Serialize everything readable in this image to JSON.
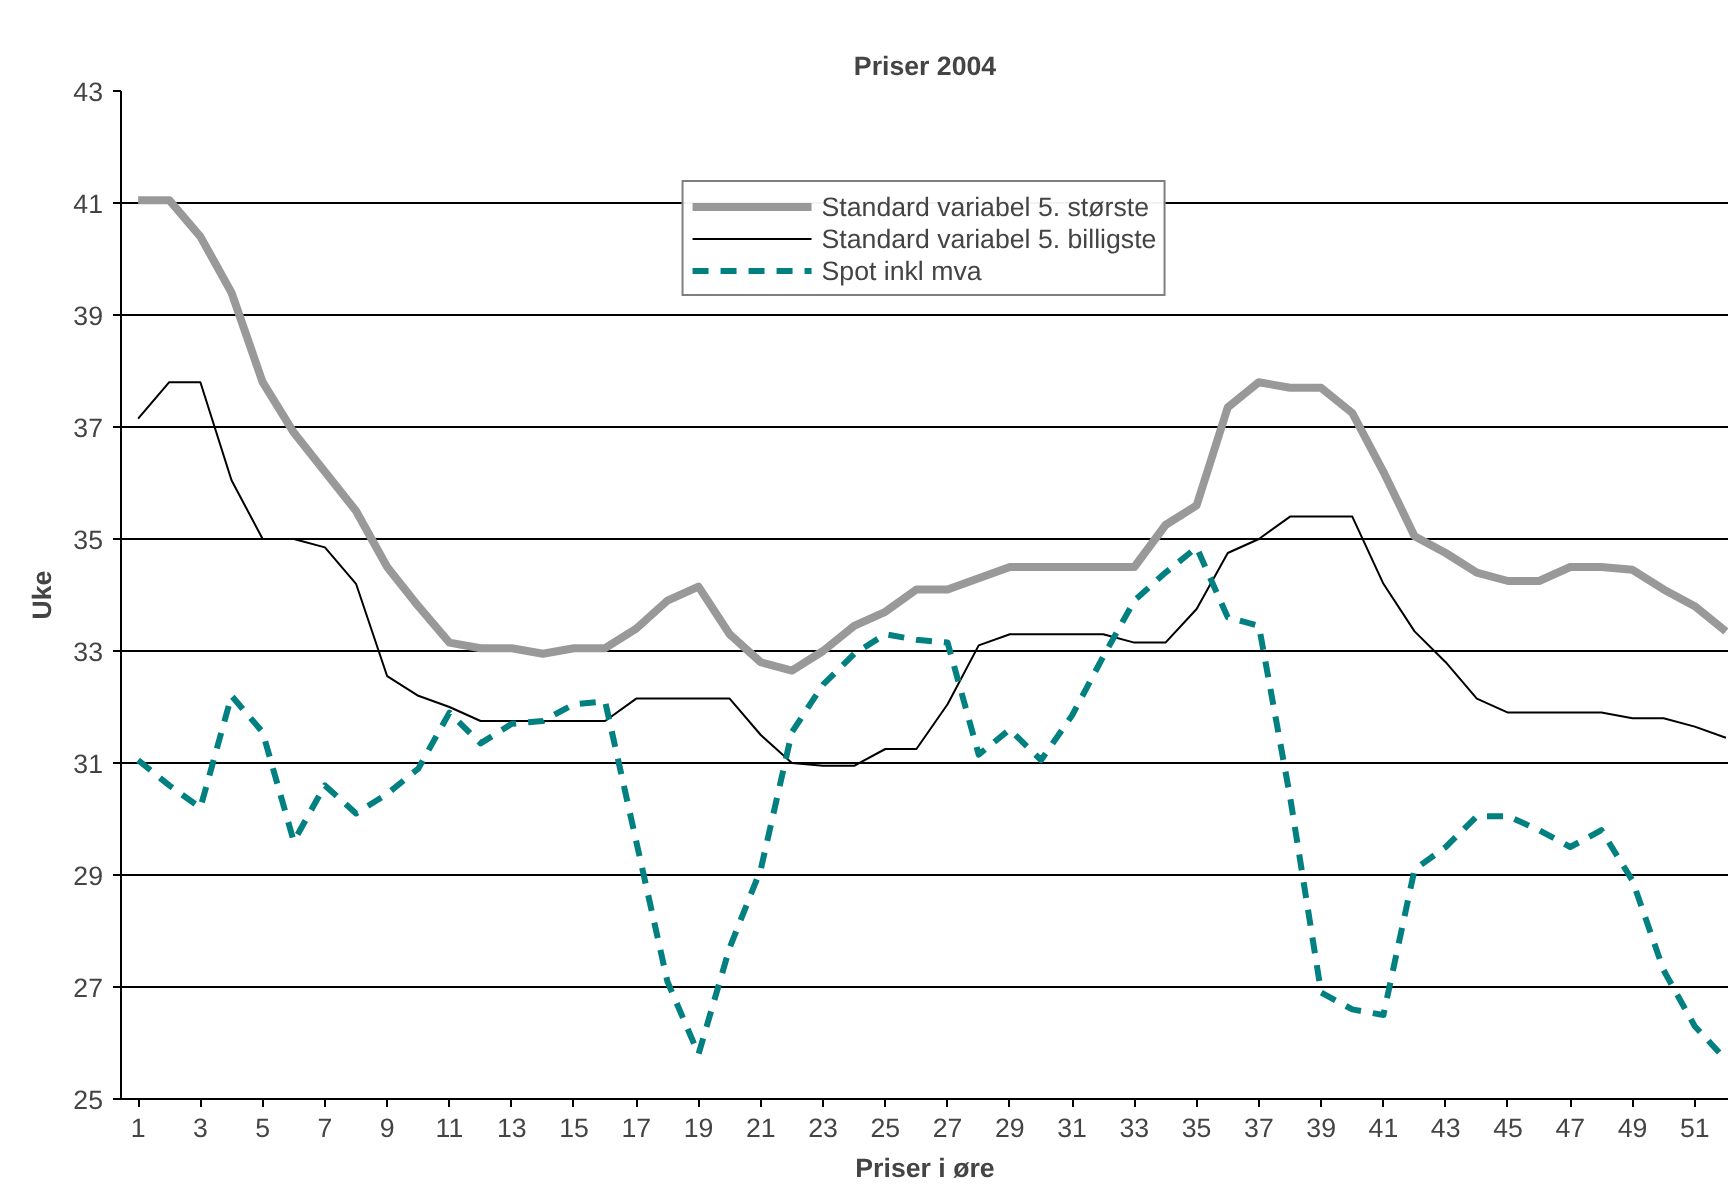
{
  "chart_data": {
    "type": "line",
    "title": "Priser 2004",
    "xlabel": "Priser i øre",
    "ylabel": "Uke",
    "x": [
      1,
      2,
      3,
      4,
      5,
      6,
      7,
      8,
      9,
      10,
      11,
      12,
      13,
      14,
      15,
      16,
      17,
      18,
      19,
      20,
      21,
      22,
      23,
      24,
      25,
      26,
      27,
      28,
      29,
      30,
      31,
      32,
      33,
      34,
      35,
      36,
      37,
      38,
      39,
      40,
      41,
      42,
      43,
      44,
      45,
      46,
      47,
      48,
      49,
      50,
      51,
      52
    ],
    "series": [
      {
        "name": "Standard variabel 5. største",
        "color": "#999999",
        "line_style": "solid",
        "values": [
          41.05,
          41.05,
          40.4,
          39.4,
          37.8,
          36.9,
          36.2,
          35.5,
          34.5,
          33.8,
          33.15,
          33.05,
          33.05,
          32.95,
          33.05,
          33.05,
          33.4,
          33.9,
          34.15,
          33.3,
          32.8,
          32.65,
          33.0,
          33.45,
          33.7,
          34.1,
          34.1,
          34.3,
          34.5,
          34.5,
          34.5,
          34.5,
          34.5,
          35.25,
          35.6,
          37.35,
          37.8,
          37.7,
          37.7,
          37.25,
          36.2,
          35.05,
          34.75,
          34.4,
          34.25,
          34.25,
          34.5,
          34.5,
          34.45,
          34.1,
          33.8,
          33.35
        ]
      },
      {
        "name": "Standard variabel 5. billigste",
        "color": "#000000",
        "line_style": "solid",
        "values": [
          37.15,
          37.8,
          37.8,
          36.05,
          35.0,
          35.0,
          34.85,
          34.2,
          32.55,
          32.2,
          32.0,
          31.75,
          31.75,
          31.75,
          31.75,
          31.75,
          32.15,
          32.15,
          32.15,
          32.15,
          31.5,
          31.0,
          30.95,
          30.95,
          31.25,
          31.25,
          32.05,
          33.1,
          33.3,
          33.3,
          33.3,
          33.3,
          33.15,
          33.15,
          33.75,
          34.75,
          35.0,
          35.4,
          35.4,
          35.4,
          34.2,
          33.35,
          32.8,
          32.15,
          31.9,
          31.9,
          31.9,
          31.9,
          31.8,
          31.8,
          31.65,
          31.45
        ]
      },
      {
        "name": "Spot inkl mva",
        "color": "#008080",
        "line_style": "dashed",
        "values": [
          31.05,
          30.6,
          30.2,
          32.2,
          31.55,
          29.6,
          30.6,
          30.1,
          30.45,
          30.9,
          31.9,
          31.35,
          31.7,
          31.75,
          32.05,
          32.1,
          29.6,
          27.1,
          25.8,
          27.7,
          29.1,
          31.55,
          32.4,
          32.95,
          33.3,
          33.2,
          33.15,
          31.15,
          31.6,
          31.05,
          31.85,
          32.9,
          33.9,
          34.4,
          34.85,
          33.6,
          33.45,
          30.4,
          26.9,
          26.6,
          26.5,
          29.1,
          29.5,
          30.05,
          30.05,
          29.8,
          29.5,
          29.8,
          28.9,
          27.3,
          26.3,
          25.7
        ]
      }
    ],
    "xlim": [
      0.45,
      52.1
    ],
    "ylim": [
      25,
      43
    ],
    "xticks": [
      1,
      3,
      5,
      7,
      9,
      11,
      13,
      15,
      17,
      19,
      21,
      23,
      25,
      27,
      29,
      31,
      33,
      35,
      37,
      39,
      41,
      43,
      45,
      47,
      49,
      51
    ],
    "yticks": [
      25,
      27,
      29,
      31,
      33,
      35,
      37,
      39,
      41,
      43
    ],
    "grid": "y",
    "legend": "top"
  }
}
